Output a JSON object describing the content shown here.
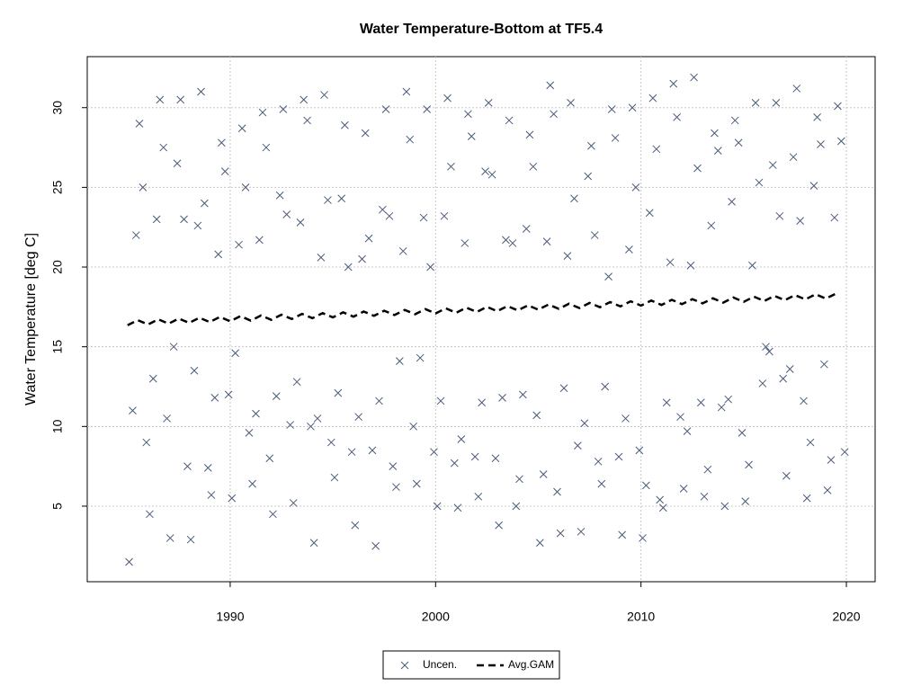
{
  "chart_data": {
    "type": "scatter",
    "title": "Water Temperature-Bottom at TF5.4",
    "y_label": "Water Temperature [deg C]",
    "xlim": [
      1983.04,
      2021.4
    ],
    "ylim": [
      0.26,
      33.2
    ],
    "xticks": [
      1990,
      2000,
      2010,
      2020
    ],
    "yticks": [
      5,
      10,
      15,
      20,
      25,
      30
    ],
    "grid": true,
    "legend": "bottom",
    "series": [
      {
        "name": "Uncen.",
        "kind": "points",
        "color": "#4a5a7a",
        "x": [
          1985.08,
          1985.25,
          1985.42,
          1985.58,
          1985.75,
          1985.92,
          1986.08,
          1986.25,
          1986.42,
          1986.58,
          1986.75,
          1986.92,
          1987.08,
          1987.25,
          1987.42,
          1987.58,
          1987.75,
          1987.92,
          1988.08,
          1988.25,
          1988.42,
          1988.58,
          1988.75,
          1988.92,
          1989.08,
          1989.25,
          1989.42,
          1989.58,
          1989.75,
          1989.92,
          1990.08,
          1990.25,
          1990.42,
          1990.58,
          1990.75,
          1990.92,
          1991.08,
          1991.25,
          1991.42,
          1991.58,
          1991.75,
          1991.92,
          1992.08,
          1992.25,
          1992.42,
          1992.58,
          1992.75,
          1992.92,
          1993.08,
          1993.25,
          1993.42,
          1993.58,
          1993.75,
          1993.92,
          1994.08,
          1994.25,
          1994.42,
          1994.58,
          1994.75,
          1994.92,
          1995.08,
          1995.25,
          1995.42,
          1995.58,
          1995.75,
          1995.92,
          1996.08,
          1996.25,
          1996.42,
          1996.58,
          1996.75,
          1996.92,
          1997.08,
          1997.25,
          1997.42,
          1997.58,
          1997.75,
          1997.92,
          1998.08,
          1998.25,
          1998.42,
          1998.58,
          1998.75,
          1998.92,
          1999.08,
          1999.25,
          1999.42,
          1999.58,
          1999.75,
          1999.92,
          2000.08,
          2000.25,
          2000.42,
          2000.58,
          2000.75,
          2000.92,
          2001.08,
          2001.25,
          2001.42,
          2001.58,
          2001.75,
          2001.92,
          2002.08,
          2002.25,
          2002.42,
          2002.58,
          2002.75,
          2002.92,
          2003.08,
          2003.25,
          2003.42,
          2003.58,
          2003.75,
          2003.92,
          2004.08,
          2004.25,
          2004.42,
          2004.58,
          2004.75,
          2004.92,
          2005.08,
          2005.25,
          2005.42,
          2005.58,
          2005.75,
          2005.92,
          2006.08,
          2006.25,
          2006.42,
          2006.58,
          2006.75,
          2006.92,
          2007.08,
          2007.25,
          2007.42,
          2007.58,
          2007.75,
          2007.92,
          2008.08,
          2008.25,
          2008.42,
          2008.58,
          2008.75,
          2008.92,
          2009.08,
          2009.25,
          2009.42,
          2009.58,
          2009.75,
          2009.92,
          2010.08,
          2010.25,
          2010.42,
          2010.58,
          2010.75,
          2010.92,
          2011.08,
          2011.25,
          2011.42,
          2011.58,
          2011.75,
          2011.92,
          2012.08,
          2012.25,
          2012.42,
          2012.58,
          2012.75,
          2012.92,
          2013.08,
          2013.25,
          2013.42,
          2013.58,
          2013.75,
          2013.92,
          2014.08,
          2014.25,
          2014.42,
          2014.58,
          2014.75,
          2014.92,
          2015.08,
          2015.25,
          2015.42,
          2015.58,
          2015.75,
          2015.92,
          2016.08,
          2016.25,
          2016.42,
          2016.58,
          2016.75,
          2016.92,
          2017.08,
          2017.25,
          2017.42,
          2017.58,
          2017.75,
          2017.92,
          2018.08,
          2018.25,
          2018.42,
          2018.58,
          2018.75,
          2018.92,
          2019.08,
          2019.25,
          2019.42,
          2019.58,
          2019.75,
          2019.92
        ],
        "values": [
          1.5,
          11.0,
          22.0,
          29.0,
          25.0,
          9.0,
          4.5,
          13.0,
          23.0,
          30.5,
          27.5,
          10.5,
          3.0,
          15.0,
          26.5,
          30.5,
          23.0,
          7.5,
          2.9,
          13.5,
          22.6,
          31.0,
          24.0,
          7.4,
          5.7,
          11.8,
          20.8,
          27.8,
          26.0,
          12.0,
          5.5,
          14.6,
          21.4,
          28.7,
          25.0,
          9.6,
          6.4,
          10.8,
          21.7,
          29.7,
          27.5,
          8.0,
          4.5,
          11.9,
          24.5,
          29.9,
          23.3,
          10.1,
          5.2,
          12.8,
          22.8,
          30.5,
          29.2,
          10.0,
          2.7,
          10.5,
          20.6,
          30.8,
          24.2,
          9.0,
          6.8,
          12.1,
          24.3,
          28.9,
          20.0,
          8.4,
          3.8,
          10.6,
          20.5,
          28.4,
          21.8,
          8.5,
          2.5,
          11.6,
          23.6,
          29.9,
          23.2,
          7.5,
          6.2,
          14.1,
          21.0,
          31.0,
          28.0,
          10.0,
          6.4,
          14.3,
          23.1,
          29.9,
          20.0,
          8.4,
          5.0,
          11.6,
          23.2,
          30.6,
          26.3,
          7.7,
          4.9,
          9.2,
          21.5,
          29.6,
          28.2,
          8.1,
          5.6,
          11.5,
          26.0,
          30.3,
          25.8,
          8.0,
          3.8,
          11.8,
          21.7,
          29.2,
          21.5,
          5.0,
          6.7,
          12.0,
          22.4,
          28.3,
          26.3,
          10.7,
          2.7,
          7.0,
          21.6,
          31.4,
          29.6,
          5.9,
          3.3,
          12.4,
          20.7,
          30.3,
          24.3,
          8.8,
          3.4,
          10.2,
          25.7,
          27.6,
          22.0,
          7.8,
          6.4,
          12.5,
          19.4,
          29.9,
          28.1,
          8.1,
          3.2,
          10.5,
          21.1,
          30.0,
          25.0,
          8.5,
          3.0,
          6.3,
          23.4,
          30.6,
          27.4,
          5.4,
          4.9,
          11.5,
          20.3,
          31.5,
          29.4,
          10.6,
          6.1,
          9.7,
          20.1,
          31.9,
          26.2,
          11.5,
          5.6,
          7.3,
          22.6,
          28.4,
          27.3,
          11.2,
          5.0,
          11.7,
          24.1,
          29.2,
          27.8,
          9.6,
          5.3,
          7.6,
          20.1,
          30.3,
          25.3,
          12.7,
          15.0,
          14.7,
          26.4,
          30.3,
          23.2,
          13.0,
          6.9,
          13.6,
          26.9,
          31.2,
          22.9,
          11.6,
          5.5,
          9.0,
          25.1,
          29.4,
          27.7,
          13.9,
          6.0,
          7.9,
          23.1,
          30.1,
          27.9,
          8.4
        ]
      },
      {
        "name": "Avg.GAM",
        "kind": "line",
        "color": "#000000",
        "x": [
          1985,
          1985.5,
          1986,
          1986.5,
          1987,
          1987.5,
          1988,
          1988.5,
          1989,
          1989.5,
          1990,
          1990.5,
          1991,
          1991.5,
          1992,
          1992.5,
          1993,
          1993.5,
          1994,
          1994.5,
          1995,
          1995.5,
          1996,
          1996.5,
          1997,
          1997.5,
          1998,
          1998.5,
          1999,
          1999.5,
          2000,
          2000.5,
          2001,
          2001.5,
          2002,
          2002.5,
          2003,
          2003.5,
          2004,
          2004.5,
          2005,
          2005.5,
          2006,
          2006.5,
          2007,
          2007.5,
          2008,
          2008.5,
          2009,
          2009.5,
          2010,
          2010.5,
          2011,
          2011.5,
          2012,
          2012.5,
          2013,
          2013.5,
          2014,
          2014.5,
          2015,
          2015.5,
          2016,
          2016.5,
          2017,
          2017.5,
          2018,
          2018.5,
          2019,
          2019.5
        ],
        "values": [
          16.35,
          16.67,
          16.4,
          16.72,
          16.45,
          16.77,
          16.5,
          16.82,
          16.55,
          16.87,
          16.6,
          16.92,
          16.64,
          16.96,
          16.69,
          17.01,
          16.74,
          17.06,
          16.79,
          17.11,
          16.84,
          17.16,
          16.89,
          17.21,
          16.94,
          17.26,
          16.99,
          17.31,
          17.04,
          17.36,
          17.09,
          17.41,
          17.13,
          17.45,
          17.18,
          17.5,
          17.23,
          17.55,
          17.28,
          17.6,
          17.33,
          17.65,
          17.38,
          17.7,
          17.43,
          17.75,
          17.48,
          17.8,
          17.53,
          17.85,
          17.58,
          17.9,
          17.62,
          17.94,
          17.67,
          17.99,
          17.72,
          18.04,
          17.77,
          18.09,
          17.82,
          18.14,
          17.87,
          18.19,
          17.92,
          18.24,
          17.97,
          18.29,
          18.02,
          18.34
        ]
      }
    ]
  }
}
